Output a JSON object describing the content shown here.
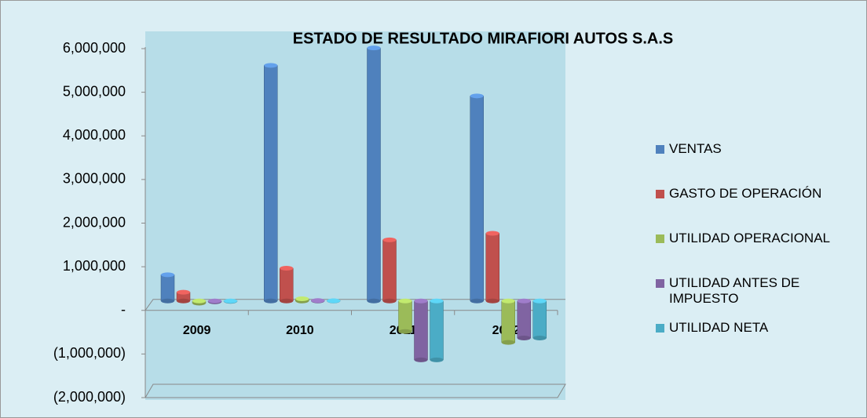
{
  "chart_data": {
    "type": "bar",
    "title": "ESTADO DE RESULTADO  MIRAFIORI AUTOS S.A.S",
    "categories": [
      "2009",
      "2010",
      "2011",
      "2012"
    ],
    "series": [
      {
        "name": "VENTAS",
        "color": "#4f81bd",
        "values": [
          600000,
          5400000,
          5800000,
          4700000
        ]
      },
      {
        "name": "GASTO DE OPERACIÓN",
        "color": "#c0504d",
        "values": [
          200000,
          750000,
          1400000,
          1550000
        ]
      },
      {
        "name": "UTILIDAD OPERACIONAL",
        "color": "#9bbb59",
        "values": [
          -50000,
          50000,
          -700000,
          -950000
        ]
      },
      {
        "name": "UTILIDAD ANTES DE IMPUESTO",
        "color": "#8064a2",
        "values": [
          -20000,
          10000,
          -1350000,
          -850000
        ]
      },
      {
        "name": "UTILIDAD NETA",
        "color": "#4bacc6",
        "values": [
          -10000,
          5000,
          -1350000,
          -850000
        ]
      }
    ],
    "ylim": [
      -2000000,
      6000000
    ],
    "yticks": [
      {
        "value": -2000000,
        "label": "(2,000,000)"
      },
      {
        "value": -1000000,
        "label": "(1,000,000)"
      },
      {
        "value": 0,
        "label": "-"
      },
      {
        "value": 1000000,
        "label": "1,000,000"
      },
      {
        "value": 2000000,
        "label": "2,000,000"
      },
      {
        "value": 3000000,
        "label": "3,000,000"
      },
      {
        "value": 4000000,
        "label": "4,000,000"
      },
      {
        "value": 5000000,
        "label": "5,000,000"
      },
      {
        "value": 6000000,
        "label": "6,000,000"
      }
    ],
    "legend": "right"
  }
}
